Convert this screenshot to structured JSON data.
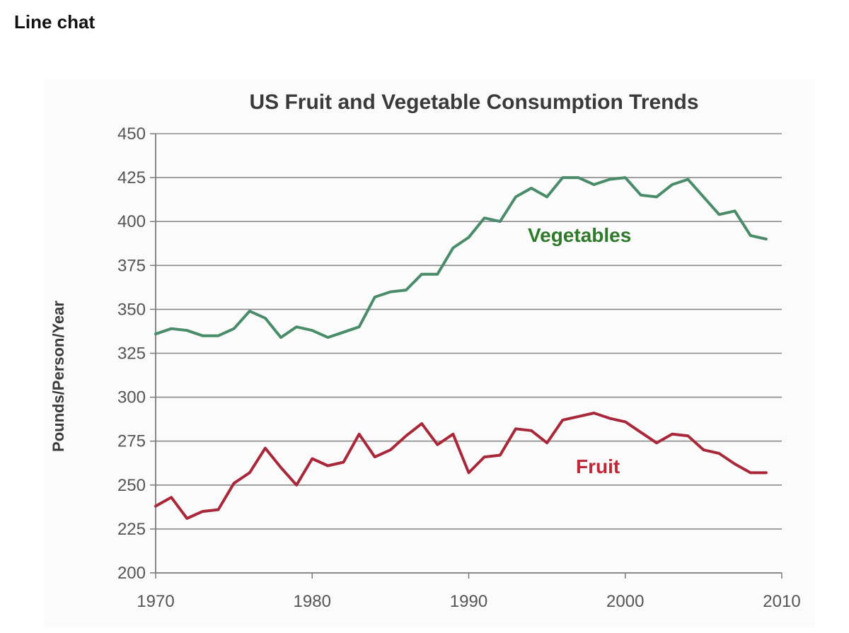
{
  "page": {
    "heading": "Line chat"
  },
  "colors": {
    "vegetables": "#4a8c6a",
    "fruit": "#a8283a",
    "veg_label": "#2f7a2a",
    "fruit_label": "#c0283a"
  },
  "chart_data": {
    "type": "line",
    "title": "US Fruit and Vegetable Consumption Trends",
    "xlabel": "",
    "ylabel": "Pounds/Person/Year",
    "xlim": [
      1970,
      2010
    ],
    "ylim": [
      200,
      450
    ],
    "xticks": [
      1970,
      1980,
      1990,
      2000,
      2010
    ],
    "yticks": [
      200,
      225,
      250,
      275,
      300,
      325,
      350,
      375,
      400,
      425,
      450
    ],
    "grid": true,
    "x": [
      1970,
      1971,
      1972,
      1973,
      1974,
      1975,
      1976,
      1977,
      1978,
      1979,
      1980,
      1981,
      1982,
      1983,
      1984,
      1985,
      1986,
      1987,
      1988,
      1989,
      1990,
      1991,
      1992,
      1993,
      1994,
      1995,
      1996,
      1997,
      1998,
      1999,
      2000,
      2001,
      2002,
      2003,
      2004,
      2005,
      2006,
      2007,
      2008,
      2009
    ],
    "series": [
      {
        "name": "Vegetables",
        "values": [
          336,
          339,
          338,
          335,
          335,
          339,
          349,
          345,
          334,
          340,
          338,
          334,
          337,
          340,
          357,
          360,
          361,
          370,
          370,
          385,
          391,
          402,
          400,
          414,
          419,
          414,
          425,
          425,
          421,
          424,
          425,
          415,
          414,
          421,
          424,
          414,
          404,
          406,
          392,
          390
        ]
      },
      {
        "name": "Fruit",
        "values": [
          238,
          243,
          231,
          235,
          236,
          251,
          257,
          271,
          260,
          250,
          265,
          261,
          263,
          279,
          266,
          270,
          278,
          285,
          273,
          279,
          257,
          266,
          267,
          282,
          281,
          274,
          287,
          289,
          291,
          288,
          286,
          280,
          274,
          279,
          278,
          270,
          268,
          262,
          257,
          257
        ]
      }
    ]
  }
}
